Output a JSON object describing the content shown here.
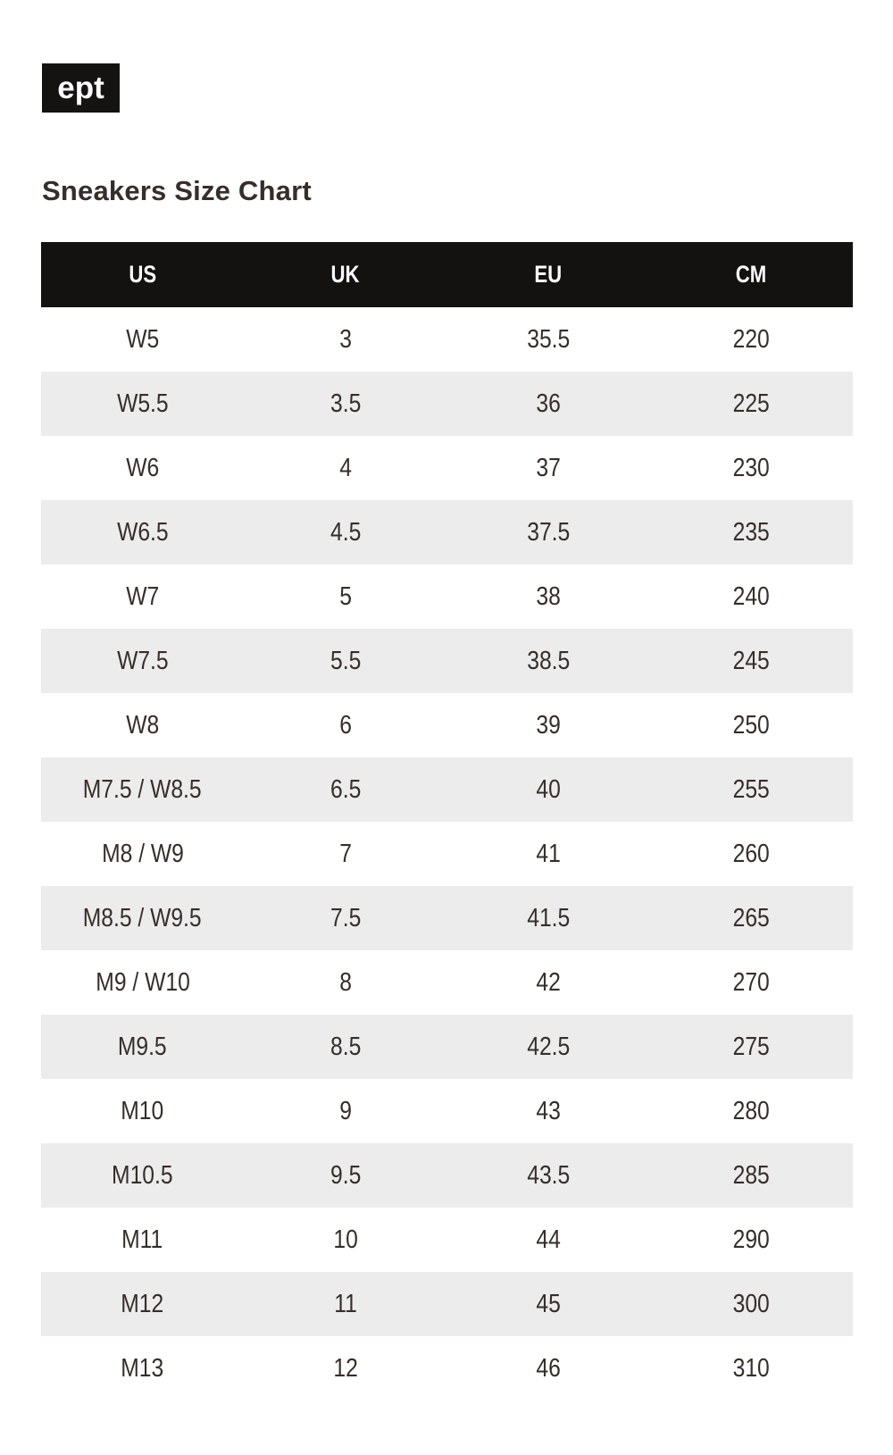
{
  "brand": {
    "logo_text": "ept"
  },
  "page": {
    "title": "Sneakers Size Chart"
  },
  "colors": {
    "logo_bg": "#151212",
    "logo_text": "#ffffff",
    "header_bg": "#141111",
    "header_text": "#ffffff",
    "row_alt_bg": "#edecec",
    "text": "#352e2b",
    "page_bg": "#ffffff"
  },
  "chart_data": {
    "type": "table",
    "title": "Sneakers Size Chart",
    "columns": [
      "US",
      "UK",
      "EU",
      "CM"
    ],
    "rows": [
      [
        "W5",
        "3",
        "35.5",
        "220"
      ],
      [
        "W5.5",
        "3.5",
        "36",
        "225"
      ],
      [
        "W6",
        "4",
        "37",
        "230"
      ],
      [
        "W6.5",
        "4.5",
        "37.5",
        "235"
      ],
      [
        "W7",
        "5",
        "38",
        "240"
      ],
      [
        "W7.5",
        "5.5",
        "38.5",
        "245"
      ],
      [
        "W8",
        "6",
        "39",
        "250"
      ],
      [
        "M7.5 / W8.5",
        "6.5",
        "40",
        "255"
      ],
      [
        "M8 / W9",
        "7",
        "41",
        "260"
      ],
      [
        "M8.5 / W9.5",
        "7.5",
        "41.5",
        "265"
      ],
      [
        "M9 / W10",
        "8",
        "42",
        "270"
      ],
      [
        "M9.5",
        "8.5",
        "42.5",
        "275"
      ],
      [
        "M10",
        "9",
        "43",
        "280"
      ],
      [
        "M10.5",
        "9.5",
        "43.5",
        "285"
      ],
      [
        "M11",
        "10",
        "44",
        "290"
      ],
      [
        "M12",
        "11",
        "45",
        "300"
      ],
      [
        "M13",
        "12",
        "46",
        "310"
      ]
    ],
    "layout": {
      "row_striping": "alternating white / light-gray starting white",
      "header_style": "black bar with white centered labels",
      "text_align": "center"
    }
  }
}
